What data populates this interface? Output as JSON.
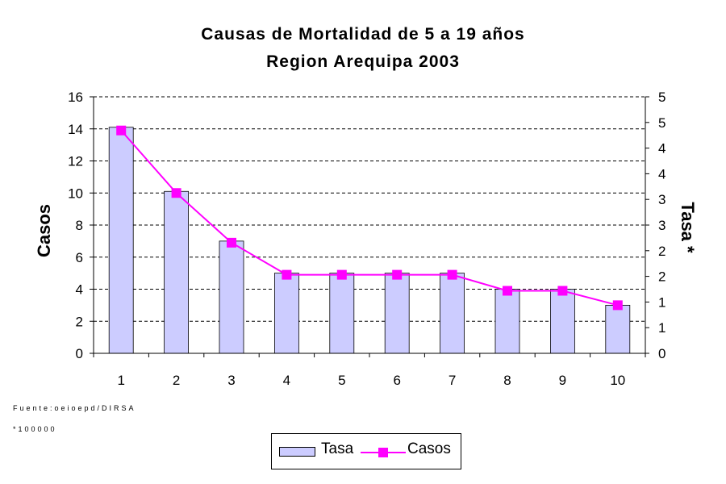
{
  "chart_data": {
    "type": "bar",
    "title": "Causas de Mortalidad de 5 a 19 años",
    "subtitle": "Region Arequipa 2003",
    "categories": [
      "1",
      "2",
      "3",
      "4",
      "5",
      "6",
      "7",
      "8",
      "9",
      "10"
    ],
    "ylabel": "Casos",
    "y2label": "Tasa *",
    "ylim": [
      0,
      16
    ],
    "y_ticks": [
      "0",
      "2",
      "4",
      "6",
      "8",
      "10",
      "12",
      "14",
      "16"
    ],
    "y2_tick_labels": [
      "0",
      "1",
      "1",
      "2",
      "2",
      "3",
      "3",
      "4",
      "4",
      "5",
      "5"
    ],
    "grid": true,
    "legend_position": "bottom",
    "series": [
      {
        "name": "Tasa",
        "type": "bar",
        "color": "#ccccff",
        "values": [
          14.1,
          10.1,
          7.0,
          5.0,
          5.0,
          5.0,
          5.0,
          4.0,
          4.0,
          3.0
        ]
      },
      {
        "name": "Casos",
        "type": "line",
        "color": "#ff00ff",
        "marker": "square",
        "values": [
          13.9,
          10.0,
          6.9,
          4.9,
          4.9,
          4.9,
          4.9,
          3.9,
          3.9,
          3.0
        ]
      }
    ]
  },
  "footer": {
    "source": "Fuente:oeioepd/DIRSA",
    "note": "*100000"
  }
}
